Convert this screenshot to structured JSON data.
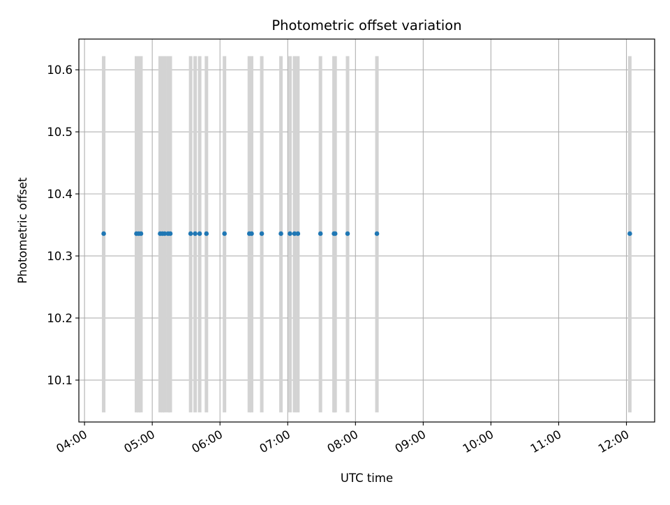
{
  "chart_data": {
    "type": "scatter",
    "title": "Photometric offset variation",
    "xlabel": "UTC time",
    "ylabel": "Photometric offset",
    "x_unit": "time of day (UTC)",
    "xlim": [
      "03:55",
      "12:25"
    ],
    "ylim": [
      10.0325,
      10.6495
    ],
    "x_ticks": [
      "04:00",
      "05:00",
      "06:00",
      "07:00",
      "08:00",
      "09:00",
      "10:00",
      "11:00",
      "12:00"
    ],
    "y_ticks": [
      10.1,
      10.2,
      10.3,
      10.4,
      10.5,
      10.6
    ],
    "grid": true,
    "marker_color": "#1f77b4",
    "band_color": "#d3d3d3",
    "band_y_range": [
      10.048,
      10.622
    ],
    "points": [
      {
        "x": "04:17",
        "y": 10.336
      },
      {
        "x": "04:46",
        "y": 10.336
      },
      {
        "x": "04:48",
        "y": 10.336
      },
      {
        "x": "04:50",
        "y": 10.336
      },
      {
        "x": "05:07",
        "y": 10.336
      },
      {
        "x": "05:09",
        "y": 10.336
      },
      {
        "x": "05:11",
        "y": 10.336
      },
      {
        "x": "05:14",
        "y": 10.336
      },
      {
        "x": "05:16",
        "y": 10.336
      },
      {
        "x": "05:34",
        "y": 10.336
      },
      {
        "x": "05:38",
        "y": 10.336
      },
      {
        "x": "05:42",
        "y": 10.336
      },
      {
        "x": "05:48",
        "y": 10.336
      },
      {
        "x": "06:04",
        "y": 10.336
      },
      {
        "x": "06:26",
        "y": 10.336
      },
      {
        "x": "06:28",
        "y": 10.336
      },
      {
        "x": "06:37",
        "y": 10.336
      },
      {
        "x": "06:54",
        "y": 10.336
      },
      {
        "x": "07:02",
        "y": 10.336
      },
      {
        "x": "07:06",
        "y": 10.336
      },
      {
        "x": "07:09",
        "y": 10.336
      },
      {
        "x": "07:29",
        "y": 10.336
      },
      {
        "x": "07:41",
        "y": 10.336
      },
      {
        "x": "07:42",
        "y": 10.336
      },
      {
        "x": "07:53",
        "y": 10.336
      },
      {
        "x": "08:19",
        "y": 10.336
      },
      {
        "x": "12:03",
        "y": 10.336
      }
    ]
  }
}
